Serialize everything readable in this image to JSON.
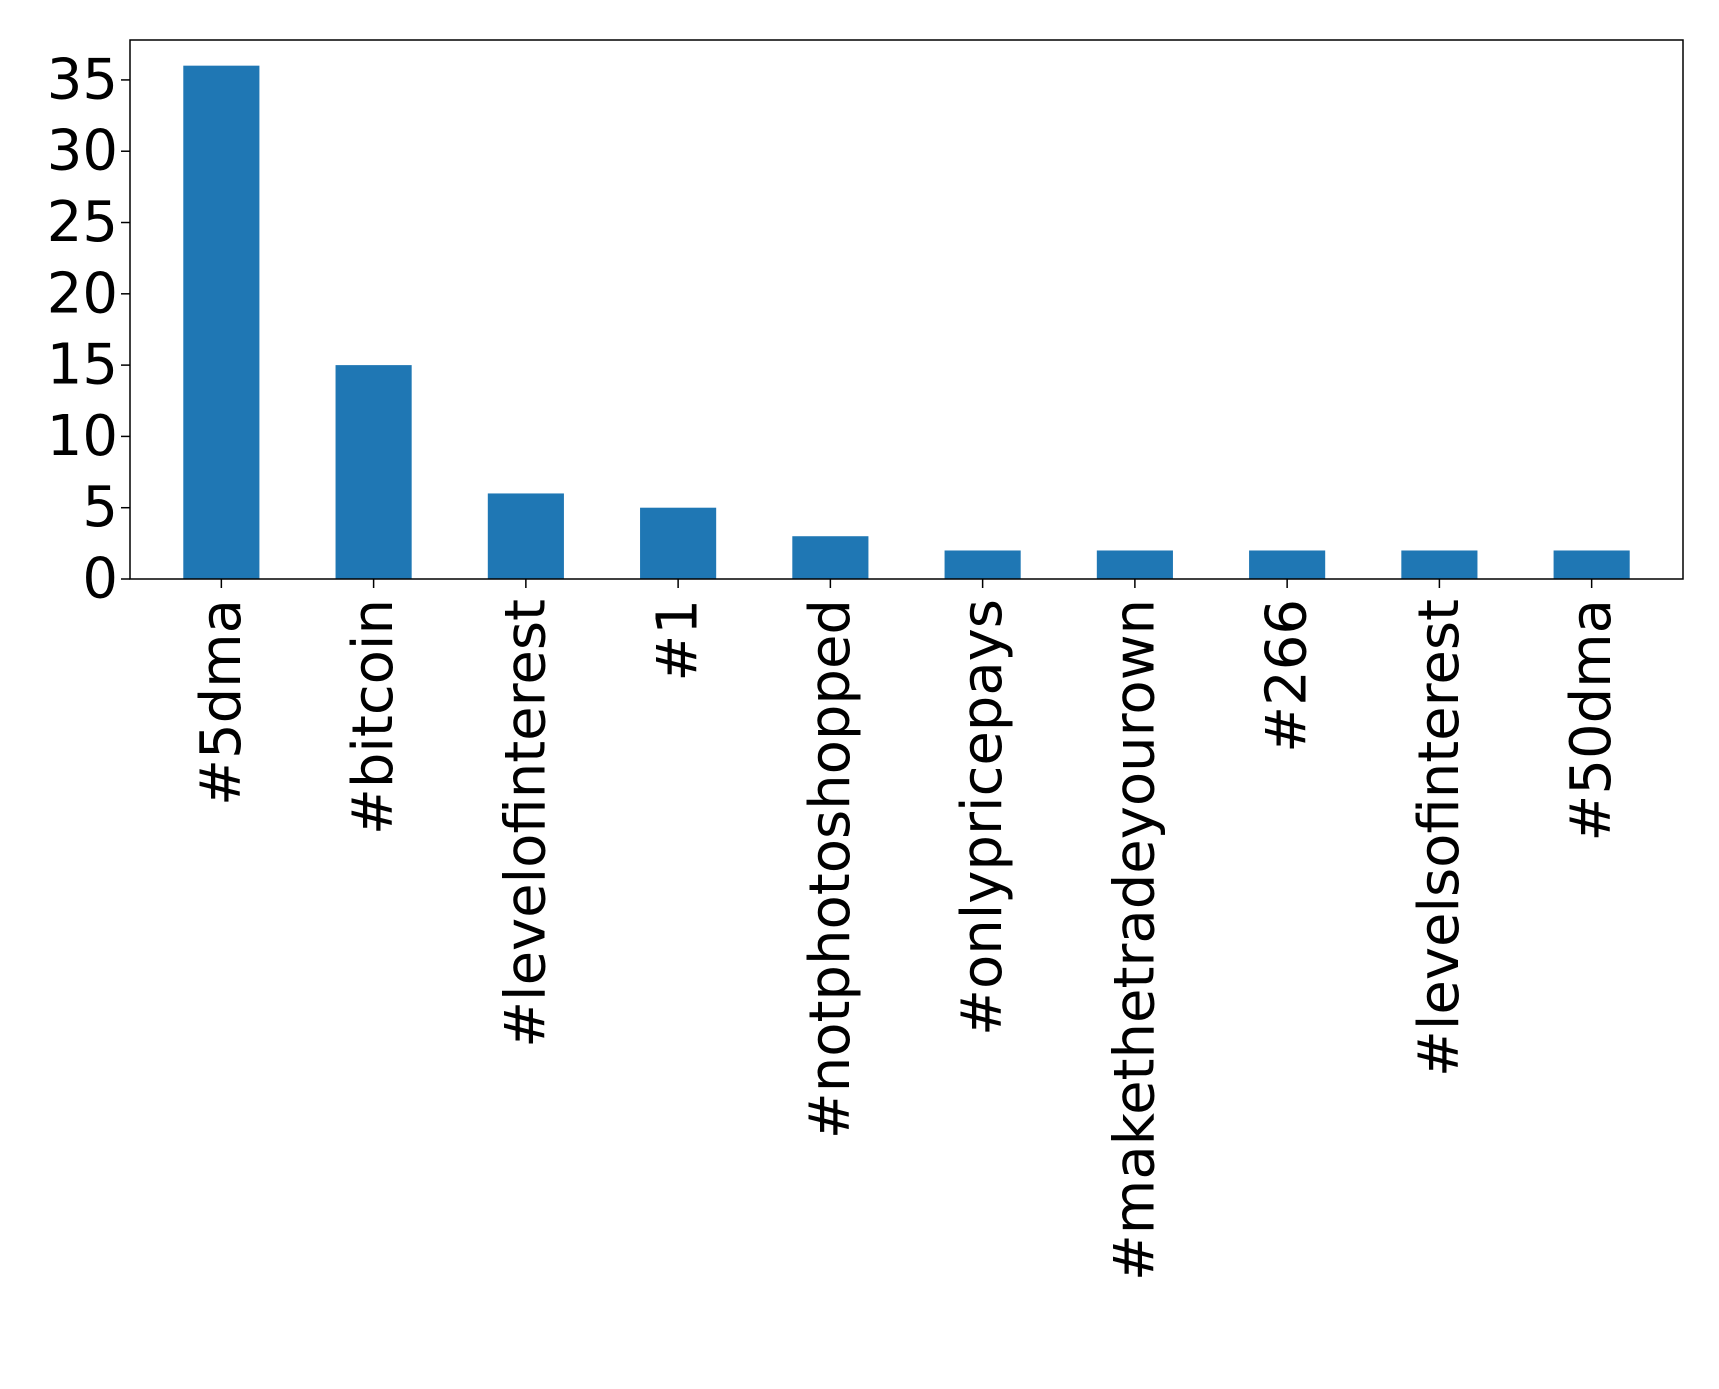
{
  "chart_data": {
    "type": "bar",
    "categories": [
      "#5dma",
      "#bitcoin",
      "#levelofinterest",
      "#1",
      "#notphotoshopped",
      "#onlypricepays",
      "#makethetradeyourown",
      "#266",
      "#levelsofinterest",
      "#50dma"
    ],
    "values": [
      36,
      15,
      6,
      5,
      3,
      2,
      2,
      2,
      2,
      2
    ],
    "title": "",
    "xlabel": "",
    "ylabel": "",
    "ylim": [
      0,
      37.8
    ],
    "yticks": [
      0,
      5,
      10,
      15,
      20,
      25,
      30,
      35
    ],
    "bar_color": "#1f77b4",
    "grid": false,
    "legend": "none"
  }
}
